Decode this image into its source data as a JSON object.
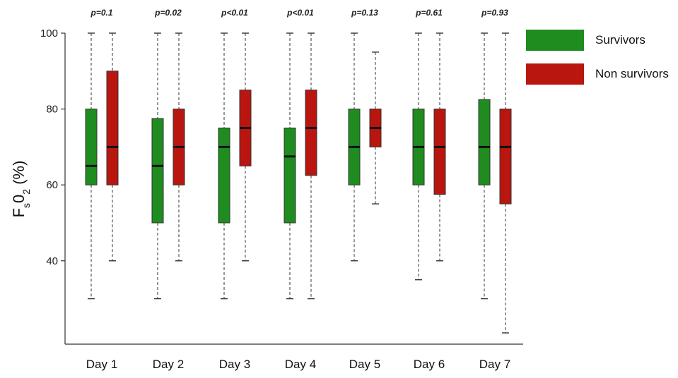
{
  "chart_data": {
    "type": "boxplot",
    "ylabel_main": "F",
    "ylabel_sub1": "s",
    "ylabel_mid": "0",
    "ylabel_sub2": "2",
    "ylabel_tail": " (%)",
    "ylim": [
      20,
      100
    ],
    "yticks": [
      40,
      60,
      80,
      100
    ],
    "categories": [
      "Day 1",
      "Day 2",
      "Day 3",
      "Day 4",
      "Day 5",
      "Day 6",
      "Day 7"
    ],
    "p_values": [
      "p=0.1",
      "p=0.02",
      "p<0.01",
      "p<0.01",
      "p=0.13",
      "p=0.61",
      "p=0.93"
    ],
    "legend_position": "top-right",
    "series": [
      {
        "name": "Survivors",
        "color": "#1e8c1e",
        "boxes": [
          {
            "min": 30,
            "q1": 60,
            "median": 65,
            "q3": 80,
            "max": 100
          },
          {
            "min": 30,
            "q1": 50,
            "median": 65,
            "q3": 77.5,
            "max": 100
          },
          {
            "min": 30,
            "q1": 50,
            "median": 70,
            "q3": 75,
            "max": 100
          },
          {
            "min": 30,
            "q1": 50,
            "median": 67.5,
            "q3": 75,
            "max": 100
          },
          {
            "min": 40,
            "q1": 60,
            "median": 70,
            "q3": 80,
            "max": 100
          },
          {
            "min": 35,
            "q1": 60,
            "median": 70,
            "q3": 80,
            "max": 100
          },
          {
            "min": 30,
            "q1": 60,
            "median": 70,
            "q3": 82.5,
            "max": 100
          }
        ]
      },
      {
        "name": "Non survivors",
        "color": "#b8160f",
        "boxes": [
          {
            "min": 40,
            "q1": 60,
            "median": 70,
            "q3": 90,
            "max": 100
          },
          {
            "min": 40,
            "q1": 60,
            "median": 70,
            "q3": 80,
            "max": 100
          },
          {
            "min": 40,
            "q1": 65,
            "median": 75,
            "q3": 85,
            "max": 100
          },
          {
            "min": 30,
            "q1": 62.5,
            "median": 75,
            "q3": 85,
            "max": 100
          },
          {
            "min": 55,
            "q1": 70,
            "median": 75,
            "q3": 80,
            "max": 95
          },
          {
            "min": 40,
            "q1": 57.5,
            "median": 70,
            "q3": 80,
            "max": 100
          },
          {
            "min": 21,
            "q1": 55,
            "median": 70,
            "q3": 80,
            "max": 100
          }
        ]
      }
    ]
  }
}
